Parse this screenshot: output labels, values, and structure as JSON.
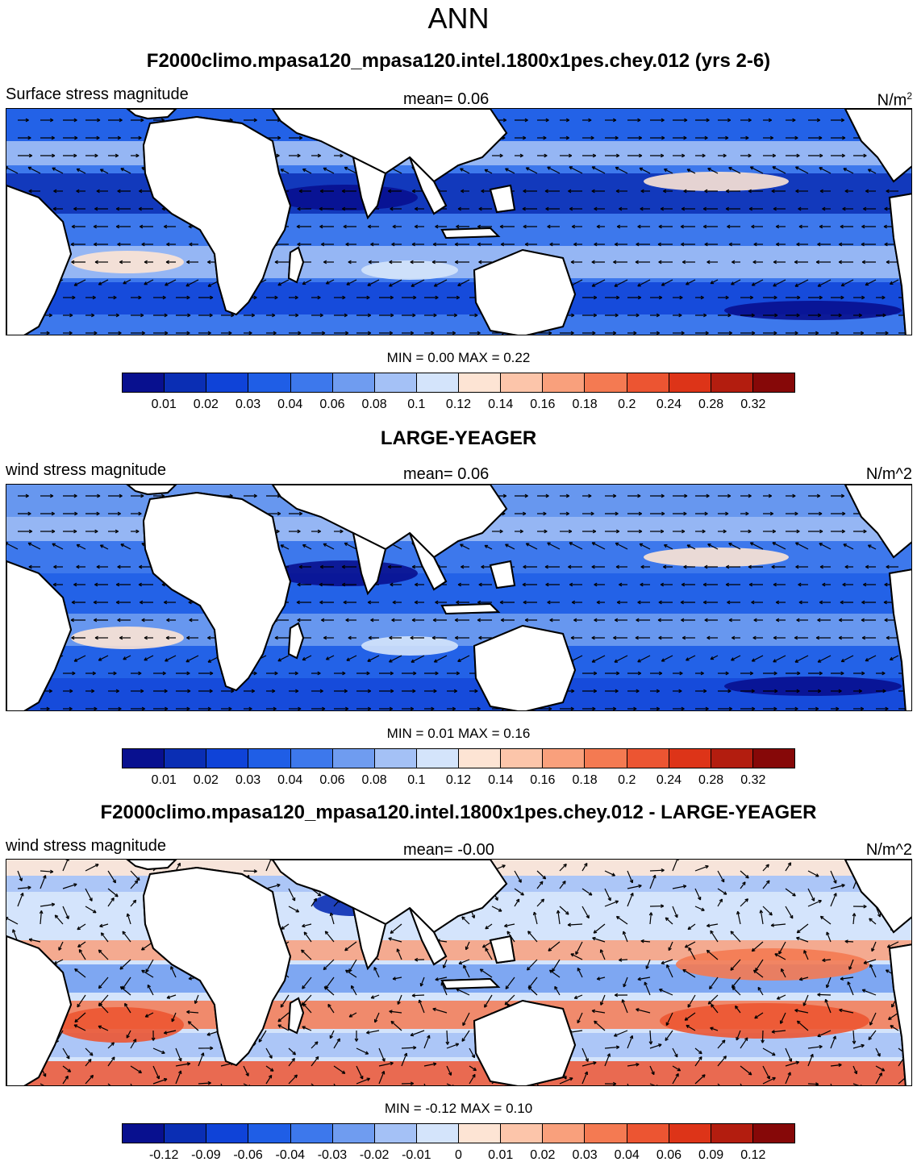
{
  "figure_title": "ANN",
  "panels": [
    {
      "title": "F2000climo.mpasa120_mpasa120.intel.1800x1pes.chey.012 (yrs 2-6)",
      "left_label": "Surface stress magnitude",
      "mean_label": "mean=   0.06",
      "units_base": "N/m",
      "units_sup": "2",
      "minmax": "MIN =   0.00 MAX =   0.22",
      "colorbar_ticks": [
        "0.01",
        "0.02",
        "0.03",
        "0.04",
        "0.06",
        "0.08",
        "0.1",
        "0.12",
        "0.14",
        "0.16",
        "0.18",
        "0.2",
        "0.24",
        "0.28",
        "0.32"
      ]
    },
    {
      "title": "LARGE-YEAGER",
      "left_label": "wind stress magnitude",
      "mean_label": "mean=   0.06",
      "units": "N/m^2",
      "minmax": "MIN =   0.01 MAX =   0.16",
      "colorbar_ticks": [
        "0.01",
        "0.02",
        "0.03",
        "0.04",
        "0.06",
        "0.08",
        "0.1",
        "0.12",
        "0.14",
        "0.16",
        "0.18",
        "0.2",
        "0.24",
        "0.28",
        "0.32"
      ]
    },
    {
      "title": "F2000climo.mpasa120_mpasa120.intel.1800x1pes.chey.012 - LARGE-YEAGER",
      "left_label": "wind stress magnitude",
      "mean_label": "mean=  -0.00",
      "units": "N/m^2",
      "minmax": "MIN =  -0.12 MAX =   0.10",
      "colorbar_ticks": [
        "-0.12",
        "-0.09",
        "-0.06",
        "-0.04",
        "-0.03",
        "-0.02",
        "-0.01",
        "0",
        "0.01",
        "0.02",
        "0.03",
        "0.04",
        "0.06",
        "0.09",
        "0.12"
      ]
    }
  ],
  "colors": {
    "abs_scale": [
      "#08108f",
      "#0a2eb4",
      "#0f43d8",
      "#1f5ee6",
      "#3d78ec",
      "#6f9cf0",
      "#a4c1f6",
      "#d4e4fb",
      "#fde4d4",
      "#fcc5aa",
      "#f9a07c",
      "#f47a52",
      "#ec5532",
      "#dd3418",
      "#b31d0f",
      "#860808"
    ],
    "diff_scale": [
      "#08108f",
      "#0a2eb4",
      "#0f43d8",
      "#1f5ee6",
      "#3d78ec",
      "#6f9cf0",
      "#a4c1f6",
      "#d4e4fb",
      "#fde4d4",
      "#fcc5aa",
      "#f9a07c",
      "#f47a52",
      "#ec5532",
      "#dd3418",
      "#b31d0f",
      "#860808"
    ],
    "land": "#ffffff"
  }
}
